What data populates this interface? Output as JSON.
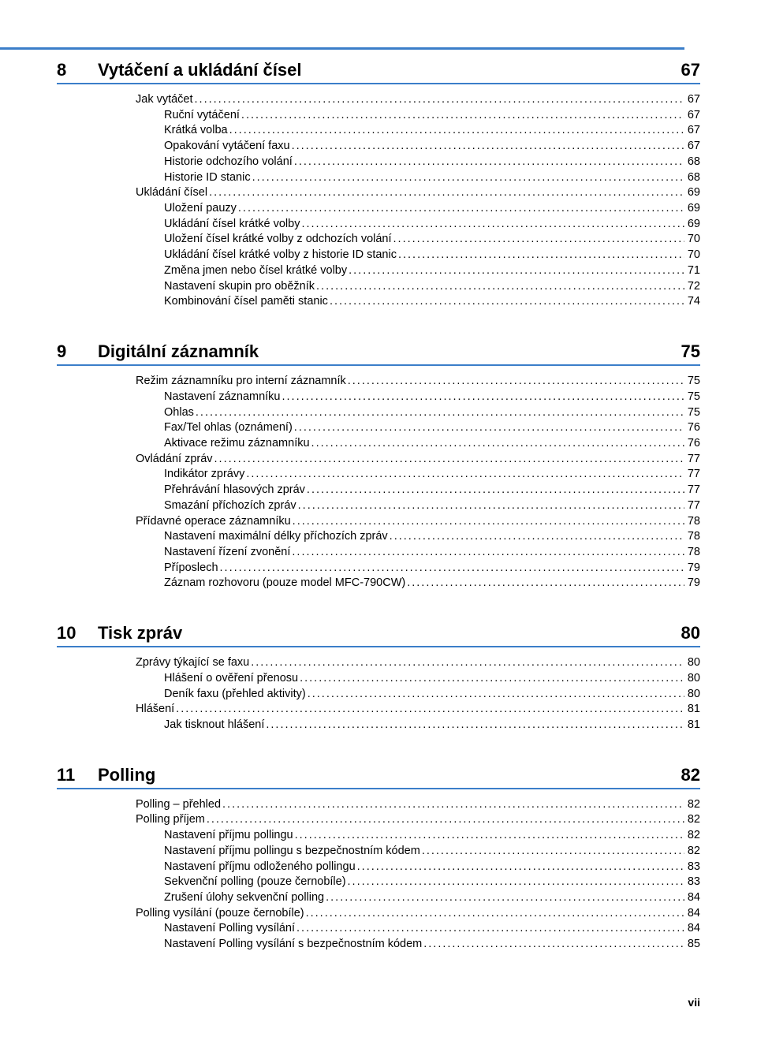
{
  "page_footer": "vii",
  "top_rule_color": "#3b7ec9",
  "chapter_underline_color": "#3b7ec9",
  "chapters": [
    {
      "number": "8",
      "title": "Vytáčení a ukládání čísel",
      "page": "67",
      "entries": [
        {
          "indent": 0,
          "label": "Jak vytáčet",
          "page": "67"
        },
        {
          "indent": 1,
          "label": "Ruční vytáčení",
          "page": "67"
        },
        {
          "indent": 1,
          "label": "Krátká volba",
          "page": "67"
        },
        {
          "indent": 1,
          "label": "Opakování vytáčení faxu",
          "page": "67"
        },
        {
          "indent": 1,
          "label": "Historie odchozího volání",
          "page": "68"
        },
        {
          "indent": 1,
          "label": "Historie ID stanic",
          "page": "68"
        },
        {
          "indent": 0,
          "label": "Ukládání čísel",
          "page": "69"
        },
        {
          "indent": 1,
          "label": "Uložení pauzy",
          "page": "69"
        },
        {
          "indent": 1,
          "label": "Ukládání čísel krátké volby",
          "page": "69"
        },
        {
          "indent": 1,
          "label": "Uložení čísel krátké volby z odchozích volání",
          "page": "70"
        },
        {
          "indent": 1,
          "label": "Ukládání čísel krátké volby z historie ID stanic",
          "page": "70"
        },
        {
          "indent": 1,
          "label": "Změna jmen nebo čísel krátké volby",
          "page": "71"
        },
        {
          "indent": 1,
          "label": "Nastavení skupin pro oběžník",
          "page": "72"
        },
        {
          "indent": 1,
          "label": "Kombinování čísel paměti stanic",
          "page": "74"
        }
      ]
    },
    {
      "number": "9",
      "title": "Digitální záznamník",
      "page": "75",
      "entries": [
        {
          "indent": 0,
          "label": "Režim záznamníku pro interní záznamník",
          "page": "75"
        },
        {
          "indent": 1,
          "label": "Nastavení záznamníku",
          "page": "75"
        },
        {
          "indent": 1,
          "label": "Ohlas",
          "page": "75"
        },
        {
          "indent": 1,
          "label": "Fax/Tel ohlas (oznámení)",
          "page": "76"
        },
        {
          "indent": 1,
          "label": "Aktivace režimu záznamníku",
          "page": "76"
        },
        {
          "indent": 0,
          "label": "Ovládání zpráv",
          "page": "77"
        },
        {
          "indent": 1,
          "label": "Indikátor zprávy",
          "page": "77"
        },
        {
          "indent": 1,
          "label": "Přehrávání hlasových zpráv",
          "page": "77"
        },
        {
          "indent": 1,
          "label": "Smazání příchozích zpráv",
          "page": "77"
        },
        {
          "indent": 0,
          "label": "Přídavné operace záznamníku",
          "page": "78"
        },
        {
          "indent": 1,
          "label": "Nastavení maximální délky příchozích zpráv",
          "page": "78"
        },
        {
          "indent": 1,
          "label": "Nastavení řízení zvonění",
          "page": "78"
        },
        {
          "indent": 1,
          "label": "Příposlech",
          "page": "79"
        },
        {
          "indent": 1,
          "label": "Záznam rozhovoru (pouze model MFC-790CW)",
          "page": "79"
        }
      ]
    },
    {
      "number": "10",
      "title": "Tisk zpráv",
      "page": "80",
      "entries": [
        {
          "indent": 0,
          "label": "Zprávy týkající se faxu",
          "page": "80"
        },
        {
          "indent": 1,
          "label": "Hlášení o ověření přenosu",
          "page": "80"
        },
        {
          "indent": 1,
          "label": "Deník faxu (přehled aktivity)",
          "page": "80"
        },
        {
          "indent": 0,
          "label": "Hlášení",
          "page": "81"
        },
        {
          "indent": 1,
          "label": "Jak tisknout hlášení",
          "page": "81"
        }
      ]
    },
    {
      "number": "11",
      "title": "Polling",
      "page": "82",
      "entries": [
        {
          "indent": 0,
          "label": "Polling – přehled",
          "page": "82"
        },
        {
          "indent": 0,
          "label": "Polling příjem",
          "page": "82"
        },
        {
          "indent": 1,
          "label": "Nastavení příjmu pollingu",
          "page": "82"
        },
        {
          "indent": 1,
          "label": "Nastavení příjmu pollingu s bezpečnostním kódem",
          "page": "82"
        },
        {
          "indent": 1,
          "label": "Nastavení příjmu odloženého pollingu",
          "page": "83"
        },
        {
          "indent": 1,
          "label": "Sekvenční polling (pouze černobíle)",
          "page": "83"
        },
        {
          "indent": 1,
          "label": "Zrušení úlohy sekvenční polling",
          "page": "84"
        },
        {
          "indent": 0,
          "label": "Polling vysílání (pouze černobíle)",
          "page": "84"
        },
        {
          "indent": 1,
          "label": "Nastavení Polling vysílání",
          "page": "84"
        },
        {
          "indent": 1,
          "label": "Nastavení Polling vysílání s bezpečnostním kódem",
          "page": "85"
        }
      ]
    }
  ]
}
